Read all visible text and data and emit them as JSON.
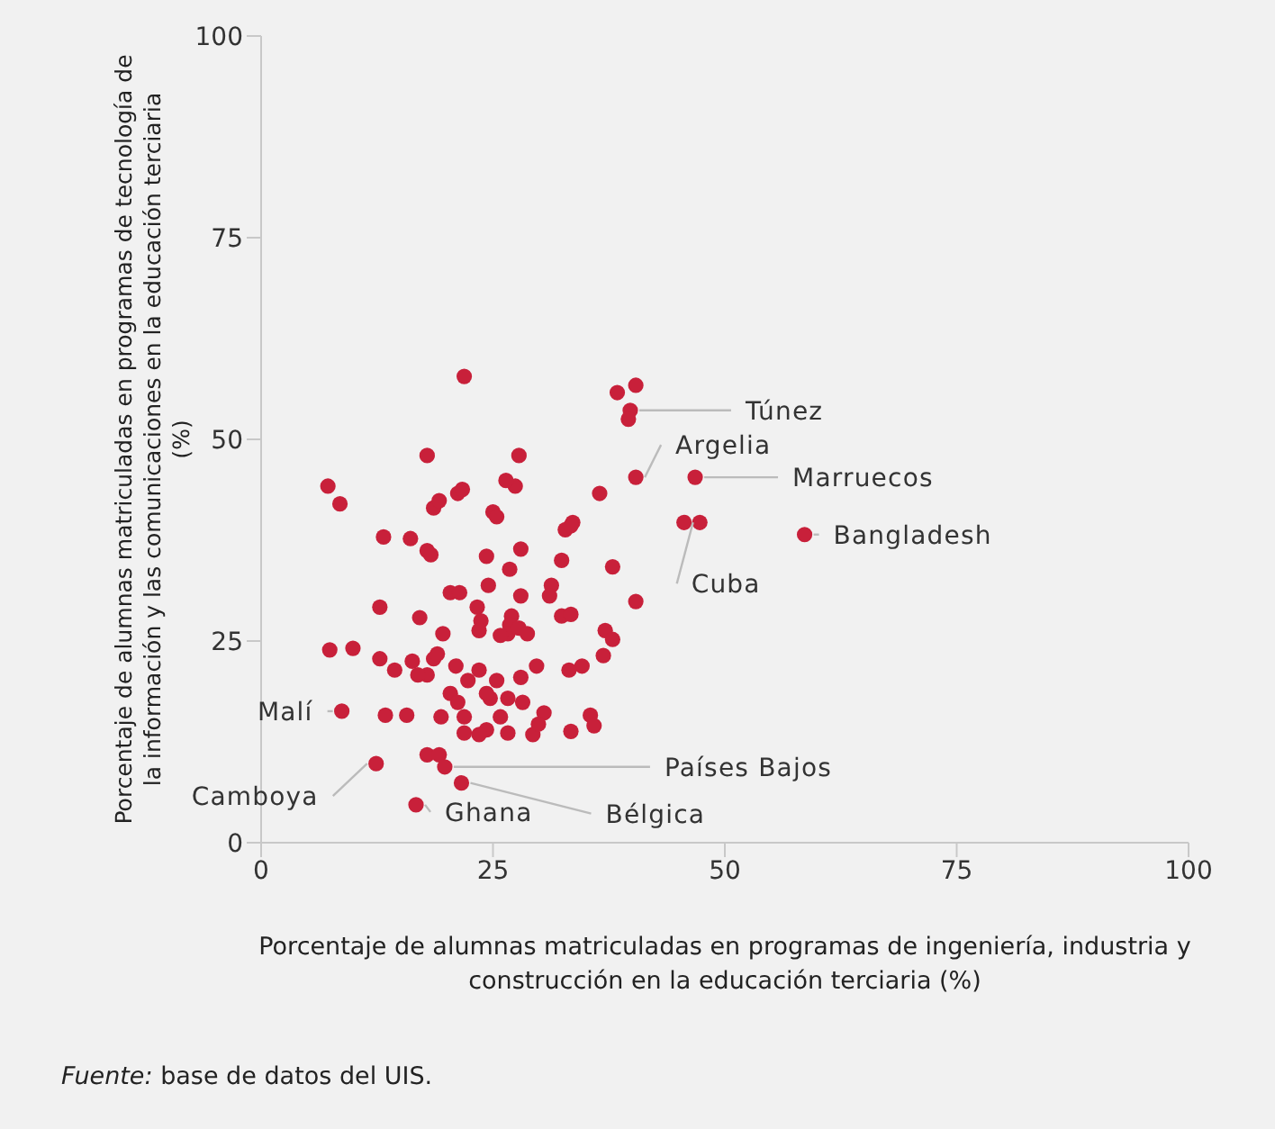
{
  "chart_data": {
    "type": "scatter",
    "xlabel": "Porcentaje de alumnas matriculadas en programas de ingeniería, industria y construcción en la educación terciaria (%)",
    "ylabel": "Porcentaje de alumnas matriculadas en programas de tecnología de la información y las comunicaciones en la educación terciaria (%)",
    "xlim": [
      0,
      100
    ],
    "ylim": [
      0,
      100
    ],
    "xticks": [
      0,
      25,
      50,
      75,
      100
    ],
    "yticks": [
      0,
      25,
      50,
      75,
      100
    ],
    "marker": "circle",
    "series": [
      {
        "color": "#c8203a",
        "x": [
          21.9,
          7.2,
          8.5,
          17.9,
          18.6,
          19.2,
          21.2,
          21.7,
          27.8,
          27.4,
          26.4,
          25,
          25.4,
          13.2,
          16.1,
          17.9,
          18.3,
          24.3,
          28,
          26.8,
          28,
          24.5,
          20.4,
          21.4,
          12.8,
          23.3,
          17.1,
          19.6,
          23.7,
          23.5,
          27,
          26.8,
          26.6,
          27.8,
          28.7,
          25.8,
          7.4,
          9.9,
          12.8,
          14.4,
          16.3,
          17.9,
          18.6,
          19,
          21,
          20.4,
          22.3,
          23.5,
          25.4,
          28,
          24.7,
          26.6,
          28.2,
          21.9,
          24.3,
          26.6,
          29.3,
          25.8,
          24.3,
          16.9,
          21.2,
          19.4,
          15.7,
          13.4,
          8.7,
          12.4,
          17.9,
          19.2,
          19.8,
          21.6,
          16.7,
          21.9,
          23.5,
          38.4,
          40.4,
          39.8,
          39.6,
          40.4,
          46.8,
          36.5,
          33.6,
          32.8,
          33.4,
          45.6,
          47.3,
          58.6,
          37.9,
          32.4,
          31.3,
          31.1,
          40.4,
          32.4,
          33.4,
          37.1,
          37.9,
          36.9,
          34.6,
          33.2,
          29.7,
          35.5,
          35.9,
          33.4,
          30.5,
          29.9
        ],
        "values": [
          57.8,
          44.2,
          42,
          48,
          41.5,
          42.4,
          43.3,
          43.8,
          48,
          44.2,
          44.9,
          41,
          40.4,
          37.9,
          37.7,
          36.2,
          35.7,
          35.5,
          36.4,
          33.9,
          30.6,
          31.9,
          31,
          31,
          29.2,
          29.2,
          27.9,
          25.9,
          27.5,
          26.3,
          28.1,
          27,
          25.9,
          26.6,
          25.9,
          25.7,
          23.9,
          24.1,
          22.8,
          21.4,
          22.5,
          20.8,
          22.8,
          23.4,
          21.9,
          18.5,
          20.1,
          21.4,
          20.1,
          20.5,
          17.9,
          17.9,
          17.4,
          15.6,
          14,
          13.6,
          13.4,
          15.6,
          18.5,
          20.8,
          17.4,
          15.6,
          15.8,
          15.8,
          16.3,
          9.8,
          10.9,
          10.9,
          9.4,
          7.4,
          4.7,
          13.6,
          13.4,
          55.8,
          56.7,
          53.6,
          52.5,
          45.3,
          45.3,
          43.3,
          39.7,
          38.8,
          39.3,
          39.7,
          39.7,
          38.2,
          34.2,
          35,
          31.9,
          30.6,
          29.9,
          28.1,
          28.3,
          26.3,
          25.2,
          23.2,
          21.9,
          21.4,
          21.9,
          15.8,
          14.5,
          13.8,
          16.1,
          14.7
        ]
      }
    ],
    "annotations": [
      {
        "text": "Túnez",
        "x": 39.8,
        "y": 53.6
      },
      {
        "text": "Argelia",
        "x": 40.4,
        "y": 45.3
      },
      {
        "text": "Marruecos",
        "x": 46.8,
        "y": 45.3
      },
      {
        "text": "Bangladesh",
        "x": 58.6,
        "y": 38.2
      },
      {
        "text": "Cuba",
        "x": 45.6,
        "y": 39.7
      },
      {
        "text": "Malí",
        "x": 8.7,
        "y": 16.3
      },
      {
        "text": "Países Bajos",
        "x": 19.8,
        "y": 9.4
      },
      {
        "text": "Camboya",
        "x": 12.4,
        "y": 9.8
      },
      {
        "text": "Bélgica",
        "x": 21.6,
        "y": 7.4
      },
      {
        "text": "Ghana",
        "x": 16.7,
        "y": 4.7
      },
      "Fuente: base de datos del UIS."
    ]
  }
}
